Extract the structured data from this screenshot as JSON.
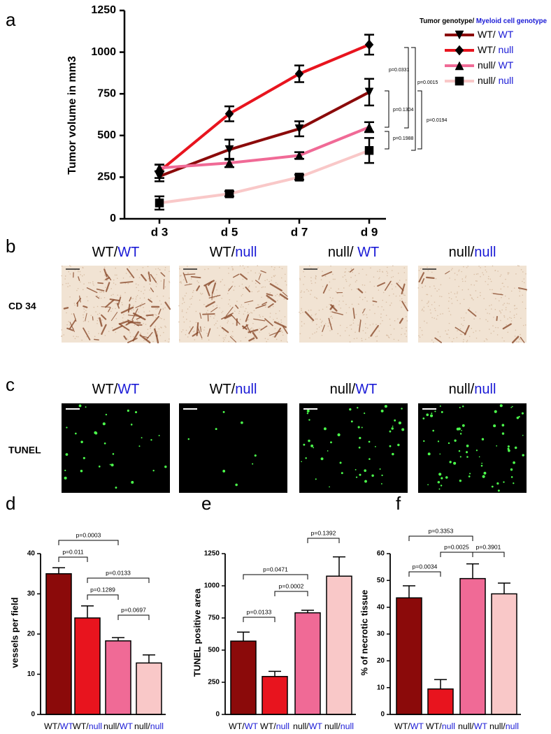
{
  "chart_data": [
    {
      "type": "line",
      "panel": "a",
      "y_label": "Tumor volume in mm3",
      "legend_title": "Tumor genotype/ Myeloid cell genotype",
      "categories": [
        "d 3",
        "d 5",
        "d 7",
        "d 9"
      ],
      "ylim": [
        0,
        1250
      ],
      "yticks": [
        0,
        250,
        500,
        750,
        1000,
        1250
      ],
      "series": [
        {
          "name": "WT/ WT",
          "color": "#8b0a0a",
          "marker": "triangle-down",
          "values": [
            255,
            415,
            540,
            760
          ],
          "errors": [
            30,
            60,
            45,
            80
          ]
        },
        {
          "name": "WT/ null",
          "color": "#e8141e",
          "marker": "diamond",
          "values": [
            285,
            630,
            870,
            1045
          ],
          "errors": [
            40,
            45,
            50,
            60
          ]
        },
        {
          "name": "null/ WT",
          "color": "#f06a96",
          "marker": "triangle-up",
          "values": [
            305,
            335,
            380,
            550
          ],
          "errors": [
            20,
            25,
            20,
            30
          ]
        },
        {
          "name": "null/ null",
          "color": "#f9c8c8",
          "marker": "square",
          "values": [
            95,
            150,
            250,
            410
          ],
          "errors": [
            40,
            15,
            15,
            75
          ]
        }
      ],
      "annotations": [
        "p=0.0331",
        "p=0.0015",
        "p=0.1304",
        "p=0.0194",
        "p=0.1988"
      ]
    },
    {
      "type": "bar",
      "panel": "d",
      "y_label": "vessels per field",
      "categories": [
        "WT/WT",
        "WT/null",
        "null/WT",
        "null/null"
      ],
      "values": [
        35,
        24,
        18.3,
        12.8
      ],
      "errors": [
        1.5,
        3,
        0.8,
        2
      ],
      "colors": [
        "#8b0a0a",
        "#e8141e",
        "#f06a96",
        "#f9c8c8"
      ],
      "ylim": [
        0,
        40
      ],
      "yticks": [
        0,
        10,
        20,
        30,
        40
      ],
      "annotations": [
        "p=0.0003",
        "p=0.011",
        "p=0.0133",
        "p=0.1289",
        "p=0.0697"
      ]
    },
    {
      "type": "bar",
      "panel": "e",
      "y_label": "TUNEL positive area",
      "categories": [
        "WT/WT",
        "WT/null",
        "null/WT",
        "null/null"
      ],
      "values": [
        570,
        295,
        790,
        1075
      ],
      "errors": [
        70,
        40,
        20,
        150
      ],
      "colors": [
        "#8b0a0a",
        "#e8141e",
        "#f06a96",
        "#f9c8c8"
      ],
      "ylim": [
        0,
        1250
      ],
      "yticks": [
        0,
        250,
        500,
        750,
        1000,
        1250
      ],
      "annotations": [
        "p=0.1392",
        "p=0.0471",
        "p=0.0002",
        "p=0.0133"
      ]
    },
    {
      "type": "bar",
      "panel": "f",
      "y_label": "% of necrotic tissue",
      "categories": [
        "WT/WT",
        "WT/null",
        "null/WT",
        "null/null"
      ],
      "values": [
        43.5,
        9.5,
        50.7,
        45
      ],
      "errors": [
        4.5,
        3.5,
        5.5,
        4
      ],
      "colors": [
        "#8b0a0a",
        "#e8141e",
        "#f06a96",
        "#f9c8c8"
      ],
      "ylim": [
        0,
        60
      ],
      "yticks": [
        0,
        10,
        20,
        30,
        40,
        50,
        60
      ],
      "annotations": [
        "p=0.3353",
        "p=0.0025",
        "p=0.3901",
        "p=0.0034"
      ]
    }
  ],
  "image_panels": [
    {
      "panel": "b",
      "row_label": "CD 34",
      "labels": [
        "WT/WT",
        "WT/null",
        "null/ WT",
        "null/null"
      ]
    },
    {
      "panel": "c",
      "row_label": "TUNEL",
      "labels": [
        "WT/WT",
        "WT/null",
        "null/WT",
        "null/null"
      ]
    }
  ]
}
